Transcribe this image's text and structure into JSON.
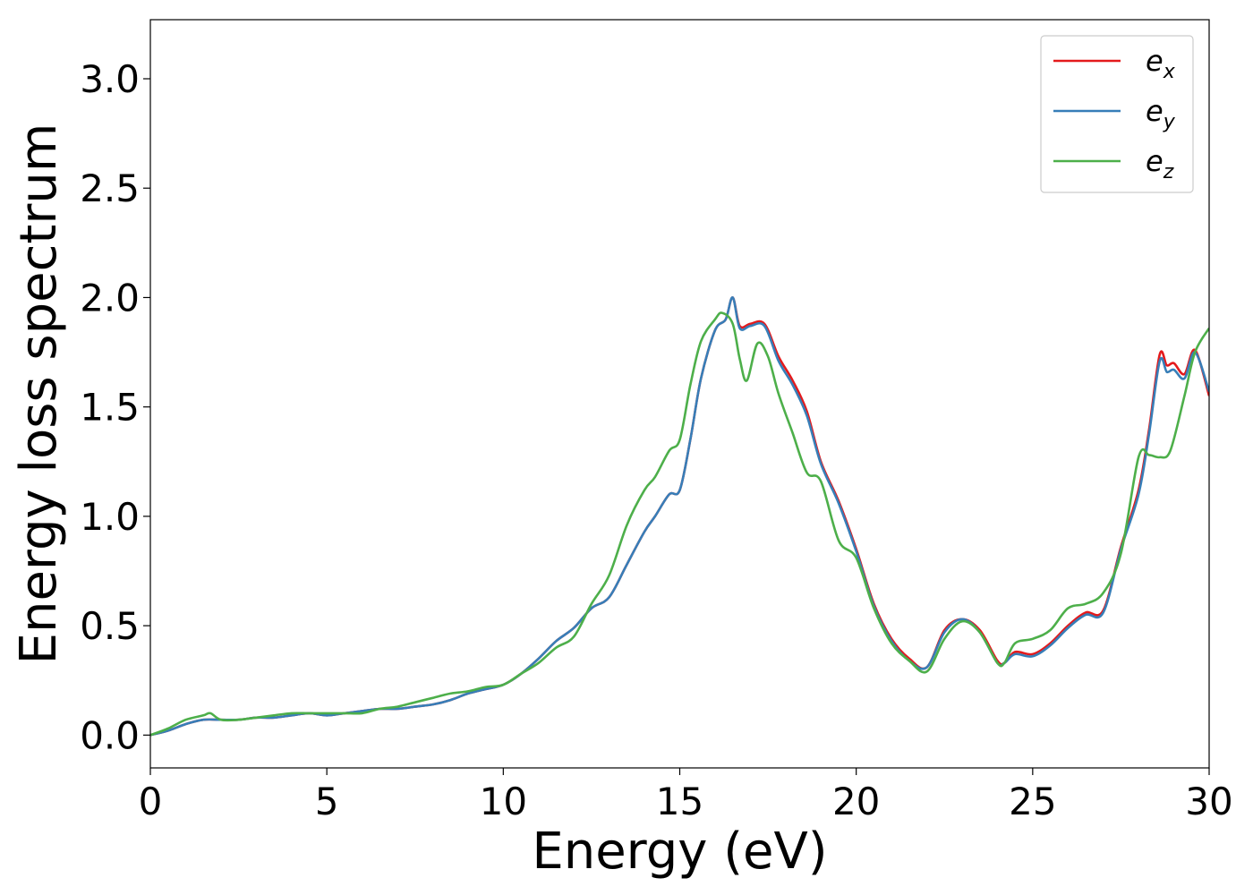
{
  "chart_data": {
    "type": "line",
    "xlabel": "Energy (eV)",
    "ylabel": "Energy loss spectrum",
    "xlim": [
      0,
      30
    ],
    "ylim": [
      -0.15,
      3.27
    ],
    "xticks": [
      0,
      5,
      10,
      15,
      20,
      25,
      30
    ],
    "yticks": [
      0.0,
      0.5,
      1.0,
      1.5,
      2.0,
      2.5,
      3.0
    ],
    "xtick_labels": [
      "0",
      "5",
      "10",
      "15",
      "20",
      "25",
      "30"
    ],
    "ytick_labels": [
      "0.0",
      "0.5",
      "1.0",
      "1.5",
      "2.0",
      "2.5",
      "3.0"
    ],
    "grid": false,
    "legend_position": "top-right",
    "series": [
      {
        "name": "e_x",
        "legend_base": "e",
        "legend_sub": "x",
        "color": "#e41a1c",
        "points": [
          [
            0,
            0.0
          ],
          [
            0.5,
            0.02
          ],
          [
            1,
            0.05
          ],
          [
            1.5,
            0.07
          ],
          [
            2,
            0.07
          ],
          [
            2.5,
            0.07
          ],
          [
            3,
            0.08
          ],
          [
            3.5,
            0.08
          ],
          [
            4,
            0.09
          ],
          [
            4.5,
            0.1
          ],
          [
            5,
            0.09
          ],
          [
            5.5,
            0.1
          ],
          [
            6,
            0.11
          ],
          [
            6.5,
            0.12
          ],
          [
            7,
            0.12
          ],
          [
            7.5,
            0.13
          ],
          [
            8,
            0.14
          ],
          [
            8.5,
            0.16
          ],
          [
            9,
            0.19
          ],
          [
            9.5,
            0.21
          ],
          [
            10,
            0.23
          ],
          [
            10.5,
            0.28
          ],
          [
            11,
            0.35
          ],
          [
            11.5,
            0.43
          ],
          [
            12,
            0.49
          ],
          [
            12.5,
            0.58
          ],
          [
            13,
            0.63
          ],
          [
            13.5,
            0.78
          ],
          [
            14,
            0.93
          ],
          [
            14.3,
            1.0
          ],
          [
            14.7,
            1.1
          ],
          [
            15,
            1.12
          ],
          [
            15.3,
            1.35
          ],
          [
            15.6,
            1.63
          ],
          [
            16,
            1.85
          ],
          [
            16.3,
            1.9
          ],
          [
            16.5,
            2.0
          ],
          [
            16.7,
            1.87
          ],
          [
            17,
            1.88
          ],
          [
            17.4,
            1.88
          ],
          [
            17.8,
            1.73
          ],
          [
            18.2,
            1.62
          ],
          [
            18.6,
            1.48
          ],
          [
            19,
            1.25
          ],
          [
            19.5,
            1.07
          ],
          [
            20,
            0.85
          ],
          [
            20.5,
            0.6
          ],
          [
            21,
            0.44
          ],
          [
            21.5,
            0.35
          ],
          [
            22,
            0.31
          ],
          [
            22.5,
            0.48
          ],
          [
            23,
            0.53
          ],
          [
            23.5,
            0.48
          ],
          [
            24,
            0.34
          ],
          [
            24.2,
            0.33
          ],
          [
            24.5,
            0.38
          ],
          [
            25,
            0.37
          ],
          [
            25.5,
            0.42
          ],
          [
            26,
            0.5
          ],
          [
            26.5,
            0.56
          ],
          [
            27,
            0.57
          ],
          [
            27.5,
            0.86
          ],
          [
            28,
            1.12
          ],
          [
            28.3,
            1.4
          ],
          [
            28.6,
            1.74
          ],
          [
            28.8,
            1.69
          ],
          [
            29,
            1.7
          ],
          [
            29.3,
            1.65
          ],
          [
            29.6,
            1.76
          ],
          [
            30,
            1.55
          ]
        ]
      },
      {
        "name": "e_y",
        "legend_base": "e",
        "legend_sub": "y",
        "color": "#377eb8",
        "points": [
          [
            0,
            0.0
          ],
          [
            0.5,
            0.02
          ],
          [
            1,
            0.05
          ],
          [
            1.5,
            0.07
          ],
          [
            2,
            0.07
          ],
          [
            2.5,
            0.07
          ],
          [
            3,
            0.08
          ],
          [
            3.5,
            0.08
          ],
          [
            4,
            0.09
          ],
          [
            4.5,
            0.1
          ],
          [
            5,
            0.09
          ],
          [
            5.5,
            0.1
          ],
          [
            6,
            0.11
          ],
          [
            6.5,
            0.12
          ],
          [
            7,
            0.12
          ],
          [
            7.5,
            0.13
          ],
          [
            8,
            0.14
          ],
          [
            8.5,
            0.16
          ],
          [
            9,
            0.19
          ],
          [
            9.5,
            0.21
          ],
          [
            10,
            0.23
          ],
          [
            10.5,
            0.28
          ],
          [
            11,
            0.35
          ],
          [
            11.5,
            0.43
          ],
          [
            12,
            0.49
          ],
          [
            12.5,
            0.58
          ],
          [
            13,
            0.63
          ],
          [
            13.5,
            0.78
          ],
          [
            14,
            0.93
          ],
          [
            14.3,
            1.0
          ],
          [
            14.7,
            1.1
          ],
          [
            15,
            1.12
          ],
          [
            15.3,
            1.35
          ],
          [
            15.6,
            1.63
          ],
          [
            16,
            1.85
          ],
          [
            16.3,
            1.9
          ],
          [
            16.5,
            2.0
          ],
          [
            16.7,
            1.86
          ],
          [
            17,
            1.87
          ],
          [
            17.4,
            1.87
          ],
          [
            17.8,
            1.71
          ],
          [
            18.2,
            1.6
          ],
          [
            18.6,
            1.46
          ],
          [
            19,
            1.24
          ],
          [
            19.5,
            1.06
          ],
          [
            20,
            0.84
          ],
          [
            20.5,
            0.59
          ],
          [
            21,
            0.43
          ],
          [
            21.5,
            0.34
          ],
          [
            22,
            0.31
          ],
          [
            22.5,
            0.47
          ],
          [
            23,
            0.53
          ],
          [
            23.5,
            0.47
          ],
          [
            24,
            0.33
          ],
          [
            24.2,
            0.33
          ],
          [
            24.5,
            0.37
          ],
          [
            25,
            0.36
          ],
          [
            25.5,
            0.41
          ],
          [
            26,
            0.49
          ],
          [
            26.5,
            0.55
          ],
          [
            27,
            0.56
          ],
          [
            27.5,
            0.85
          ],
          [
            28,
            1.1
          ],
          [
            28.3,
            1.38
          ],
          [
            28.6,
            1.71
          ],
          [
            28.8,
            1.66
          ],
          [
            29,
            1.67
          ],
          [
            29.3,
            1.63
          ],
          [
            29.6,
            1.75
          ],
          [
            30,
            1.57
          ]
        ]
      },
      {
        "name": "e_z",
        "legend_base": "e",
        "legend_sub": "z",
        "color": "#4daf4a",
        "points": [
          [
            0,
            0.0
          ],
          [
            0.5,
            0.03
          ],
          [
            1,
            0.07
          ],
          [
            1.5,
            0.09
          ],
          [
            1.7,
            0.1
          ],
          [
            2,
            0.07
          ],
          [
            2.5,
            0.07
          ],
          [
            3,
            0.08
          ],
          [
            3.5,
            0.09
          ],
          [
            4,
            0.1
          ],
          [
            4.5,
            0.1
          ],
          [
            5,
            0.1
          ],
          [
            5.5,
            0.1
          ],
          [
            6,
            0.1
          ],
          [
            6.5,
            0.12
          ],
          [
            7,
            0.13
          ],
          [
            7.5,
            0.15
          ],
          [
            8,
            0.17
          ],
          [
            8.5,
            0.19
          ],
          [
            9,
            0.2
          ],
          [
            9.5,
            0.22
          ],
          [
            10,
            0.23
          ],
          [
            10.5,
            0.28
          ],
          [
            11,
            0.33
          ],
          [
            11.5,
            0.4
          ],
          [
            12,
            0.45
          ],
          [
            12.5,
            0.6
          ],
          [
            13,
            0.73
          ],
          [
            13.5,
            0.96
          ],
          [
            14,
            1.12
          ],
          [
            14.3,
            1.18
          ],
          [
            14.7,
            1.3
          ],
          [
            15,
            1.35
          ],
          [
            15.3,
            1.6
          ],
          [
            15.6,
            1.8
          ],
          [
            16,
            1.9
          ],
          [
            16.2,
            1.93
          ],
          [
            16.5,
            1.88
          ],
          [
            16.7,
            1.72
          ],
          [
            16.9,
            1.62
          ],
          [
            17.2,
            1.79
          ],
          [
            17.5,
            1.73
          ],
          [
            17.8,
            1.56
          ],
          [
            18.2,
            1.38
          ],
          [
            18.6,
            1.2
          ],
          [
            19,
            1.16
          ],
          [
            19.5,
            0.89
          ],
          [
            20,
            0.81
          ],
          [
            20.5,
            0.58
          ],
          [
            21,
            0.42
          ],
          [
            21.5,
            0.34
          ],
          [
            22,
            0.29
          ],
          [
            22.5,
            0.44
          ],
          [
            23,
            0.52
          ],
          [
            23.5,
            0.47
          ],
          [
            24,
            0.33
          ],
          [
            24.2,
            0.33
          ],
          [
            24.5,
            0.42
          ],
          [
            25,
            0.44
          ],
          [
            25.5,
            0.48
          ],
          [
            26,
            0.58
          ],
          [
            26.5,
            0.6
          ],
          [
            27,
            0.65
          ],
          [
            27.5,
            0.83
          ],
          [
            28,
            1.27
          ],
          [
            28.3,
            1.28
          ],
          [
            28.6,
            1.27
          ],
          [
            28.9,
            1.3
          ],
          [
            29.3,
            1.55
          ],
          [
            29.6,
            1.75
          ],
          [
            30,
            1.86
          ]
        ]
      }
    ]
  }
}
